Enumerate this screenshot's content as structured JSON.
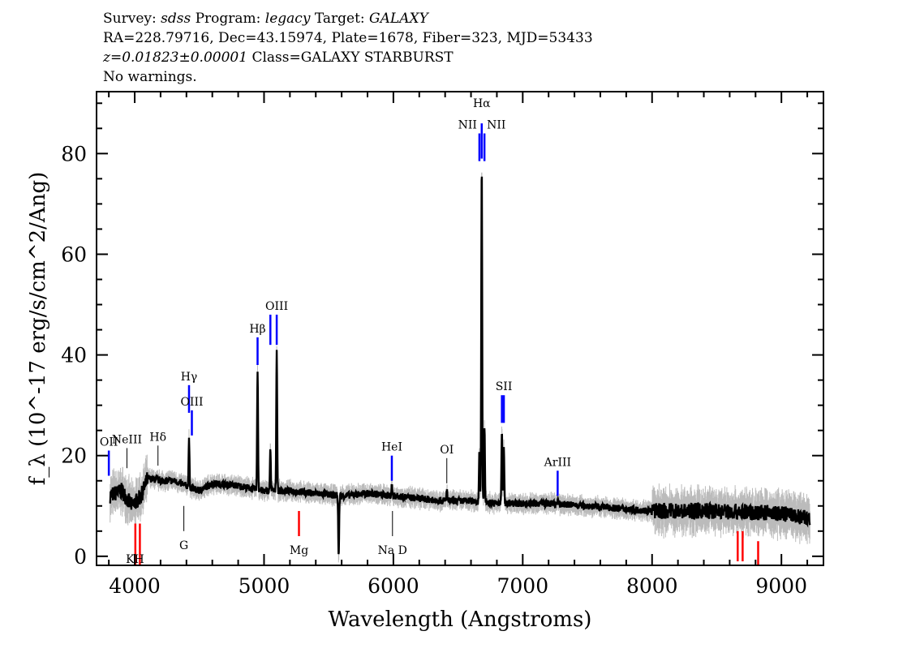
{
  "header": {
    "line1": {
      "survey_label": "Survey:",
      "survey": "sdss",
      "program_label": "Program:",
      "program": "legacy",
      "target_label": "Target:",
      "target": "GALAXY"
    },
    "line2": "RA=228.79716, Dec=43.15974, Plate=1678, Fiber=323, MJD=53433",
    "line3": {
      "redshift": "z=0.01823±0.00001",
      "class": "Class=GALAXY STARBURST"
    },
    "line4": "No warnings."
  },
  "chart_data": {
    "type": "line",
    "xlabel": "Wavelength (Angstroms)",
    "ylabel": "f_λ (10^-17 erg/s/cm^2/Ang)",
    "xlim": [
      3705,
      9325
    ],
    "ylim": [
      -1.8,
      92.3
    ],
    "xticks": [
      4000,
      5000,
      6000,
      7000,
      8000,
      9000
    ],
    "yticks": [
      0,
      20,
      40,
      60,
      80
    ],
    "grid": false,
    "colors": {
      "spectrum": "#000000",
      "error": "#bbbbbb",
      "emission": "#0000ff",
      "absorption": "#ff0000",
      "other": "#000000"
    },
    "continuum": [
      [
        3800,
        12
      ],
      [
        3900,
        13
      ],
      [
        3980,
        10
      ],
      [
        4050,
        12
      ],
      [
        4100,
        15.5
      ],
      [
        4200,
        15
      ],
      [
        4300,
        15
      ],
      [
        4400,
        14
      ],
      [
        4500,
        13
      ],
      [
        4600,
        14.5
      ],
      [
        4800,
        14
      ],
      [
        5000,
        13
      ],
      [
        5200,
        13
      ],
      [
        5400,
        12.5
      ],
      [
        5600,
        12
      ],
      [
        5800,
        12.5
      ],
      [
        6000,
        12
      ],
      [
        6200,
        11.5
      ],
      [
        6400,
        11
      ],
      [
        6600,
        11
      ],
      [
        6800,
        10.5
      ],
      [
        7000,
        10.5
      ],
      [
        7200,
        10.5
      ],
      [
        7500,
        10
      ],
      [
        8000,
        9
      ],
      [
        8500,
        9
      ],
      [
        9000,
        8.5
      ],
      [
        9200,
        7.5
      ]
    ],
    "emission_peaks": [
      [
        4420,
        23
      ],
      [
        4950,
        37
      ],
      [
        5049,
        21
      ],
      [
        5098,
        41
      ],
      [
        5577,
        0
      ],
      [
        5988,
        14
      ],
      [
        6413,
        13
      ],
      [
        6665,
        21
      ],
      [
        6683,
        78
      ],
      [
        6704,
        26
      ],
      [
        6839,
        25
      ],
      [
        6854,
        21
      ],
      [
        7270,
        11
      ]
    ],
    "line_markers": [
      {
        "label": "OII",
        "x": 3800,
        "y1": 16,
        "y2": 21,
        "color": "emission"
      },
      {
        "label": "NeIII",
        "x": 3940,
        "y1": 17.5,
        "y2": 21.5,
        "color": "other"
      },
      {
        "label": "Hδ",
        "x": 4180,
        "y1": 18,
        "y2": 22,
        "color": "other"
      },
      {
        "label": "Hγ",
        "x": 4420,
        "y1": 28.5,
        "y2": 34,
        "color": "emission"
      },
      {
        "label": "OIII",
        "x": 4442,
        "y1": 24,
        "y2": 29,
        "color": "emission"
      },
      {
        "label": "Hβ",
        "x": 4950,
        "y1": 38,
        "y2": 43.5,
        "color": "emission"
      },
      {
        "label": "",
        "x": 5049,
        "y1": 42,
        "y2": 48,
        "color": "emission"
      },
      {
        "label": "OIII",
        "x": 5098,
        "y1": 42,
        "y2": 48,
        "color": "emission"
      },
      {
        "label": "HeI",
        "x": 5988,
        "y1": 15,
        "y2": 20,
        "color": "emission"
      },
      {
        "label": "OI",
        "x": 6413,
        "y1": 14.5,
        "y2": 19.5,
        "color": "other"
      },
      {
        "label": "NII",
        "x": 6665,
        "y1": 78.5,
        "y2": 84,
        "color": "emission"
      },
      {
        "label": "Hα",
        "x": 6683,
        "y1": 79,
        "y2": 86,
        "color": "emission"
      },
      {
        "label": "NII",
        "x": 6704,
        "y1": 78.5,
        "y2": 84,
        "color": "emission"
      },
      {
        "label": "",
        "x": 6839,
        "y1": 26.5,
        "y2": 32,
        "color": "emission"
      },
      {
        "label": "SII",
        "x": 6854,
        "y1": 26.5,
        "y2": 32,
        "color": "emission"
      },
      {
        "label": "ArIII",
        "x": 7270,
        "y1": 12,
        "y2": 17,
        "color": "emission"
      },
      {
        "label": "",
        "x": 4005,
        "y1": -1.8,
        "y2": 6.5,
        "color": "absorption",
        "below": true
      },
      {
        "label": "KH",
        "x": 4040,
        "y1": -1.8,
        "y2": 6.5,
        "color": "absorption",
        "below": true
      },
      {
        "label": "G",
        "x": 4380,
        "y1": 5,
        "y2": 10,
        "color": "other",
        "below": true
      },
      {
        "label": "Mg",
        "x": 5270,
        "y1": 4,
        "y2": 9,
        "color": "absorption",
        "below": true
      },
      {
        "label": "Na D",
        "x": 5993,
        "y1": 4,
        "y2": 9,
        "color": "other",
        "below": true
      },
      {
        "label": "",
        "x": 8662,
        "y1": -1,
        "y2": 5,
        "color": "absorption"
      },
      {
        "label": "",
        "x": 8700,
        "y1": -1,
        "y2": 5,
        "color": "absorption"
      },
      {
        "label": "",
        "x": 8820,
        "y1": -1.8,
        "y2": 3,
        "color": "absorption"
      }
    ]
  }
}
